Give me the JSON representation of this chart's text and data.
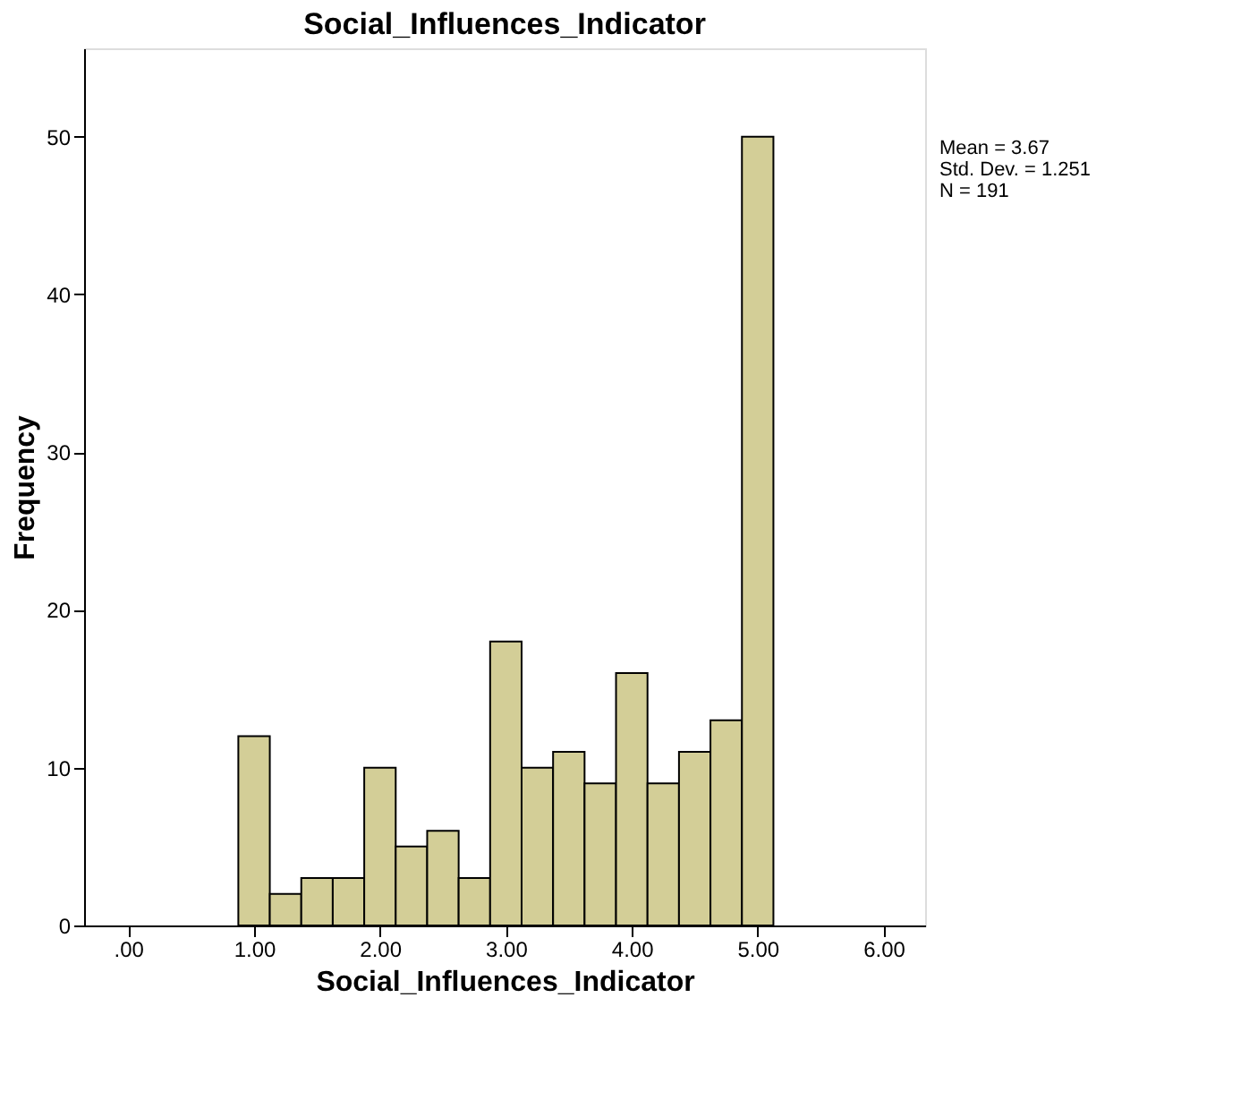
{
  "chart_data": {
    "type": "histogram",
    "title": "Social_Influences_Indicator",
    "xlabel": "Social_Influences_Indicator",
    "ylabel": "Frequency",
    "bins": [
      0.875,
      1.125,
      1.375,
      1.625,
      1.875,
      2.125,
      2.375,
      2.625,
      2.875,
      3.125,
      3.375,
      3.625,
      3.875,
      4.125,
      4.375,
      4.625,
      4.875,
      5.125
    ],
    "values": [
      12,
      2,
      3,
      3,
      10,
      5,
      6,
      3,
      18,
      10,
      11,
      9,
      16,
      9,
      11,
      13,
      50
    ],
    "color": "#d3ce97",
    "xlim": [
      -0.35,
      6.33
    ],
    "xticks": [
      {
        "value": 0,
        "label": ".00"
      },
      {
        "value": 1,
        "label": "1.00"
      },
      {
        "value": 2,
        "label": "2.00"
      },
      {
        "value": 3,
        "label": "3.00"
      },
      {
        "value": 4,
        "label": "4.00"
      },
      {
        "value": 5,
        "label": "5.00"
      },
      {
        "value": 6,
        "label": "6.00"
      }
    ],
    "ylim": [
      0,
      55.6
    ],
    "yticks": [
      0,
      10,
      20,
      30,
      40,
      50
    ],
    "grid": false,
    "annotations": [
      "Mean = 3.67",
      "Std. Dev. = 1.251",
      "N = 191"
    ]
  }
}
